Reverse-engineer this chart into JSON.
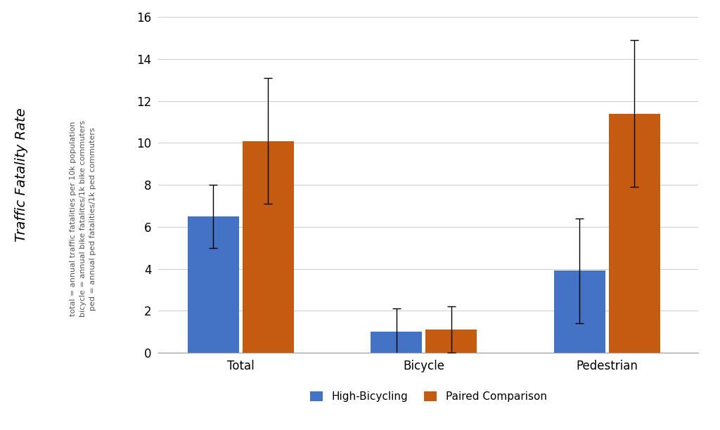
{
  "categories": [
    "Total",
    "Bicycle",
    "Pedestrian"
  ],
  "high_bicycling": [
    6.5,
    1.0,
    3.9
  ],
  "paired_comparison": [
    10.1,
    1.1,
    11.4
  ],
  "high_bicycling_err": [
    1.5,
    1.1,
    2.5
  ],
  "paired_comparison_err": [
    3.0,
    1.1,
    3.5
  ],
  "bar_color_high": "#4472C4",
  "bar_color_paired": "#C55A11",
  "ylabel_main": "Traffic Fatality Rate",
  "ylabel_sub_lines": [
    "total = annual traffic fatalities per 10k population",
    "bicycle = annual bike fatalites/1k bike commuters",
    "ped = annual ped fatalities/1k ped commuters"
  ],
  "ylim": [
    0,
    16
  ],
  "yticks": [
    0,
    2,
    4,
    6,
    8,
    10,
    12,
    14,
    16
  ],
  "legend_labels": [
    "High-Bicycling",
    "Paired Comparison"
  ],
  "bar_width": 0.28,
  "group_centers": [
    0.35,
    1.35,
    2.35
  ],
  "background_color": "#ffffff",
  "grid_color": "#d0d0d0",
  "tick_fontsize": 12,
  "legend_fontsize": 11,
  "capsize": 4,
  "ylabel_main_fontsize": 14,
  "ylabel_sub_fontsize": 8
}
